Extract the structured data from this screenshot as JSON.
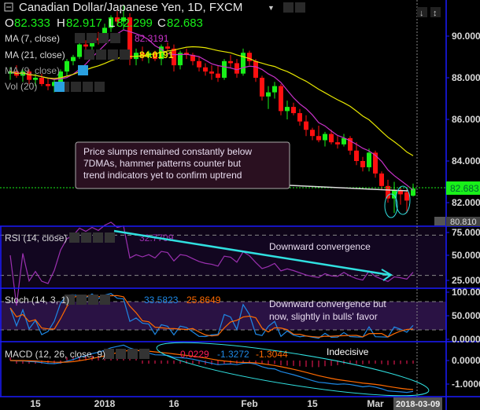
{
  "header": {
    "title": "Canadian Dollar/Japanese Yen, 1D, FXCM",
    "ohlc": {
      "o_label": "O",
      "o": "82.333",
      "h_label": "H",
      "h": "82.917",
      "l_label": "L",
      "l": "82.299",
      "c_label": "C",
      "c": "82.683"
    }
  },
  "legend": {
    "ma7": {
      "label": "MA (7, close)",
      "value": "82.3191"
    },
    "ma21": {
      "label": "MA (21, close)",
      "value": "84.0191"
    },
    "ma9": {
      "label": "MA (9, close)"
    },
    "vol": {
      "label": "Vol (20)"
    },
    "rsi": {
      "label": "RSI (14, close)",
      "value": "32.7709"
    },
    "stoch": {
      "label": "Stoch (14, 3, 1)",
      "k": "33.5823",
      "d": "25.8649"
    },
    "macd": {
      "label": "MACD (12, 26, close, 9)",
      "hist": "0.0229",
      "macd": "-1.3272",
      "signal": "-1.3044"
    }
  },
  "annotations": {
    "price_box": [
      "Price slumps remained constantly below",
      "7DMAs, hammer patterns counter but",
      "trend indicators yet to confirm uptrend"
    ],
    "rsi": "Downward convergence",
    "stoch": [
      "Downward convergence but",
      "now, slightly in bulls' favor"
    ],
    "macd": "Indecisive"
  },
  "colors": {
    "up": "#19f019",
    "down": "#ff1010",
    "ma7": "#c832c8",
    "ma21": "#e6e600",
    "rsi": "#9b30b0",
    "stoch_k": "#1e88e5",
    "stoch_d": "#ff6a00",
    "macd": "#1e88e5",
    "signal": "#ff6a00",
    "hist": "#ff1a5a",
    "axis": "#1a1aff",
    "cyan": "#30e0e0",
    "last_price": "#19f019"
  },
  "chart_data": {
    "type": "candlestick",
    "symbol": "CAD/JPY",
    "timeframe": "1D",
    "price_axis": {
      "ticks": [
        90,
        88,
        86,
        84,
        82
      ],
      "tick_labels": [
        "90.000",
        "88.000",
        "86.000",
        "84.000",
        "82.000"
      ],
      "last_price": "82.683",
      "crosshair_price": "80.810"
    },
    "rsi_axis": {
      "ticks": [
        75,
        50,
        25
      ],
      "tick_labels": [
        "75.0000",
        "50.0000",
        "25.0000"
      ],
      "bands": [
        70,
        30
      ]
    },
    "stoch_axis": {
      "ticks": [
        100,
        50,
        0
      ],
      "tick_labels": [
        "100.0000",
        "50.0000",
        "0.0000"
      ],
      "bands": [
        80,
        20
      ]
    },
    "macd_axis": {
      "ticks": [
        0,
        -1
      ],
      "tick_labels": [
        "0.0000",
        "-1.0000"
      ]
    },
    "date_ticks": [
      {
        "label": "15",
        "date": "2017-12-15"
      },
      {
        "label": "2018",
        "date": "2018-01-01"
      },
      {
        "label": "16",
        "date": "2018-01-16"
      },
      {
        "label": "Feb",
        "date": "2018-02-01"
      },
      {
        "label": "15",
        "date": "2018-02-15"
      },
      {
        "label": "Mar",
        "date": "2018-03-01"
      }
    ],
    "crosshair_date": "2018-03-09",
    "candles": [
      [
        "2017-12-11",
        88.2,
        88.5,
        87.9,
        88.3
      ],
      [
        "2017-12-12",
        88.3,
        88.6,
        88.0,
        88.1
      ],
      [
        "2017-12-13",
        88.1,
        88.4,
        87.8,
        88.3
      ],
      [
        "2017-12-14",
        88.3,
        88.4,
        87.7,
        87.9
      ],
      [
        "2017-12-15",
        87.9,
        88.2,
        87.6,
        88.0
      ],
      [
        "2017-12-18",
        88.0,
        88.2,
        87.6,
        87.7
      ],
      [
        "2017-12-19",
        87.7,
        88.0,
        87.4,
        87.6
      ],
      [
        "2017-12-20",
        87.6,
        87.9,
        87.3,
        87.8
      ],
      [
        "2017-12-21",
        87.8,
        88.4,
        87.7,
        88.3
      ],
      [
        "2017-12-22",
        88.3,
        88.9,
        88.1,
        88.8
      ],
      [
        "2017-12-25",
        88.8,
        89.1,
        88.6,
        89.0
      ],
      [
        "2017-12-26",
        89.0,
        89.8,
        88.9,
        89.6
      ],
      [
        "2017-12-27",
        89.6,
        89.8,
        89.3,
        89.5
      ],
      [
        "2017-12-28",
        89.5,
        90.0,
        89.2,
        89.9
      ],
      [
        "2017-12-29",
        89.9,
        90.2,
        89.6,
        89.8
      ],
      [
        "2018-01-01",
        89.8,
        90.6,
        89.7,
        90.4
      ],
      [
        "2018-01-02",
        90.4,
        91.0,
        90.2,
        90.9
      ],
      [
        "2018-01-03",
        90.9,
        91.2,
        90.5,
        90.7
      ],
      [
        "2018-01-04",
        90.7,
        91.5,
        90.3,
        90.9
      ],
      [
        "2018-01-05",
        90.9,
        91.1,
        88.6,
        88.9
      ],
      [
        "2018-01-08",
        88.9,
        89.4,
        88.6,
        89.2
      ],
      [
        "2018-01-09",
        89.2,
        89.5,
        88.8,
        89.0
      ],
      [
        "2018-01-10",
        89.0,
        89.3,
        88.7,
        89.2
      ],
      [
        "2018-01-11",
        89.2,
        89.3,
        88.8,
        88.9
      ],
      [
        "2018-01-12",
        88.9,
        89.6,
        88.6,
        89.5
      ],
      [
        "2018-01-15",
        89.5,
        89.7,
        89.3,
        89.4
      ],
      [
        "2018-01-16",
        89.4,
        89.6,
        88.3,
        88.6
      ],
      [
        "2018-01-17",
        88.6,
        89.3,
        88.4,
        89.2
      ],
      [
        "2018-01-18",
        89.2,
        89.4,
        88.9,
        89.1
      ],
      [
        "2018-01-19",
        89.1,
        89.2,
        88.6,
        88.8
      ],
      [
        "2018-01-22",
        88.8,
        89.0,
        88.3,
        88.5
      ],
      [
        "2018-01-23",
        88.5,
        88.7,
        88.1,
        88.3
      ],
      [
        "2018-01-24",
        88.3,
        88.6,
        87.9,
        88.2
      ],
      [
        "2018-01-25",
        88.2,
        88.6,
        87.8,
        88.0
      ],
      [
        "2018-01-26",
        88.0,
        88.9,
        87.9,
        88.8
      ],
      [
        "2018-01-29",
        88.8,
        89.1,
        88.5,
        88.7
      ],
      [
        "2018-01-30",
        88.7,
        88.9,
        88.0,
        88.2
      ],
      [
        "2018-01-31",
        88.2,
        89.4,
        88.1,
        89.2
      ],
      [
        "2018-02-01",
        89.2,
        89.3,
        88.6,
        88.8
      ],
      [
        "2018-02-02",
        88.8,
        88.9,
        87.8,
        88.0
      ],
      [
        "2018-02-05",
        88.0,
        88.1,
        86.9,
        87.1
      ],
      [
        "2018-02-06",
        87.1,
        87.6,
        86.5,
        87.3
      ],
      [
        "2018-02-07",
        87.3,
        87.8,
        87.0,
        87.6
      ],
      [
        "2018-02-08",
        87.6,
        87.7,
        86.2,
        86.4
      ],
      [
        "2018-02-09",
        86.4,
        86.9,
        86.0,
        86.6
      ],
      [
        "2018-02-12",
        86.6,
        86.8,
        86.2,
        86.3
      ],
      [
        "2018-02-13",
        86.3,
        86.5,
        85.7,
        85.9
      ],
      [
        "2018-02-14",
        85.9,
        86.2,
        85.2,
        85.5
      ],
      [
        "2018-02-15",
        85.5,
        85.6,
        85.0,
        85.2
      ],
      [
        "2018-02-16",
        85.2,
        85.7,
        84.9,
        85.0
      ],
      [
        "2018-02-19",
        85.0,
        85.4,
        84.7,
        85.3
      ],
      [
        "2018-02-20",
        85.3,
        85.5,
        84.8,
        84.9
      ],
      [
        "2018-02-21",
        84.9,
        85.2,
        84.6,
        84.8
      ],
      [
        "2018-02-22",
        84.8,
        85.3,
        84.7,
        85.1
      ],
      [
        "2018-02-23",
        85.1,
        85.2,
        84.3,
        84.5
      ],
      [
        "2018-02-26",
        84.5,
        84.9,
        83.8,
        84.0
      ],
      [
        "2018-02-27",
        84.0,
        84.2,
        83.5,
        83.7
      ],
      [
        "2018-02-28",
        83.7,
        84.6,
        83.5,
        84.4
      ],
      [
        "2018-03-01",
        84.4,
        84.5,
        83.2,
        83.4
      ],
      [
        "2018-03-02",
        83.4,
        83.5,
        82.6,
        82.8
      ],
      [
        "2018-03-05",
        82.8,
        83.1,
        82.0,
        82.2
      ],
      [
        "2018-03-06",
        82.2,
        83.0,
        81.5,
        82.6
      ],
      [
        "2018-03-07",
        82.6,
        82.7,
        81.9,
        82.4
      ],
      [
        "2018-03-08",
        82.5,
        82.7,
        81.5,
        82.1
      ],
      [
        "2018-03-09",
        82.333,
        82.917,
        82.299,
        82.683
      ]
    ]
  }
}
